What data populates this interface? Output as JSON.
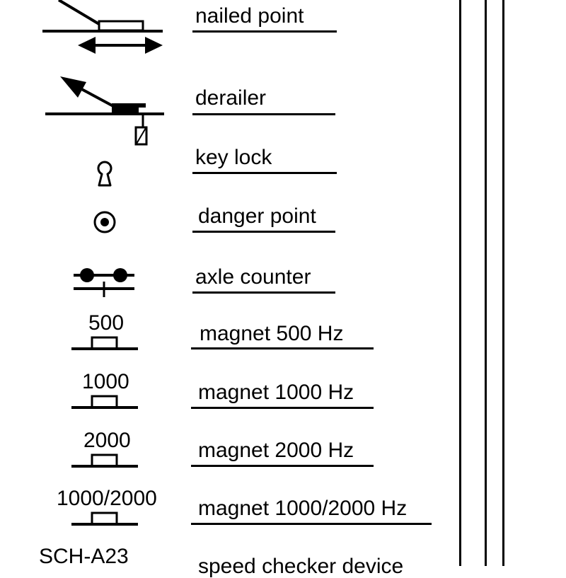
{
  "legend": {
    "entries": [
      {
        "id": "nailed-point",
        "label": "nailed point",
        "icon": "nailed-point-icon"
      },
      {
        "id": "derailer",
        "label": "derailer",
        "icon": "derailer-icon"
      },
      {
        "id": "key-lock",
        "label": "key lock",
        "icon": "key-lock-icon"
      },
      {
        "id": "danger-point",
        "label": "danger point",
        "icon": "danger-point-icon"
      },
      {
        "id": "axle-counter",
        "label": "axle counter",
        "icon": "axle-counter-icon"
      },
      {
        "id": "magnet-500",
        "label": "magnet 500 Hz",
        "icon": "magnet-icon",
        "symbol_text": "500"
      },
      {
        "id": "magnet-1000",
        "label": "magnet 1000 Hz",
        "icon": "magnet-icon",
        "symbol_text": "1000"
      },
      {
        "id": "magnet-2000",
        "label": "magnet 2000 Hz",
        "icon": "magnet-icon",
        "symbol_text": "2000"
      },
      {
        "id": "magnet-1000-2000",
        "label": "magnet 1000/2000 Hz",
        "icon": "magnet-icon",
        "symbol_text": "1000/2000"
      },
      {
        "id": "speed-checker",
        "label": "speed checker device",
        "icon": "speed-checker-icon",
        "symbol_text": "SCH-A23"
      }
    ]
  },
  "colors": {
    "ink": "#000000",
    "background": "#ffffff"
  }
}
